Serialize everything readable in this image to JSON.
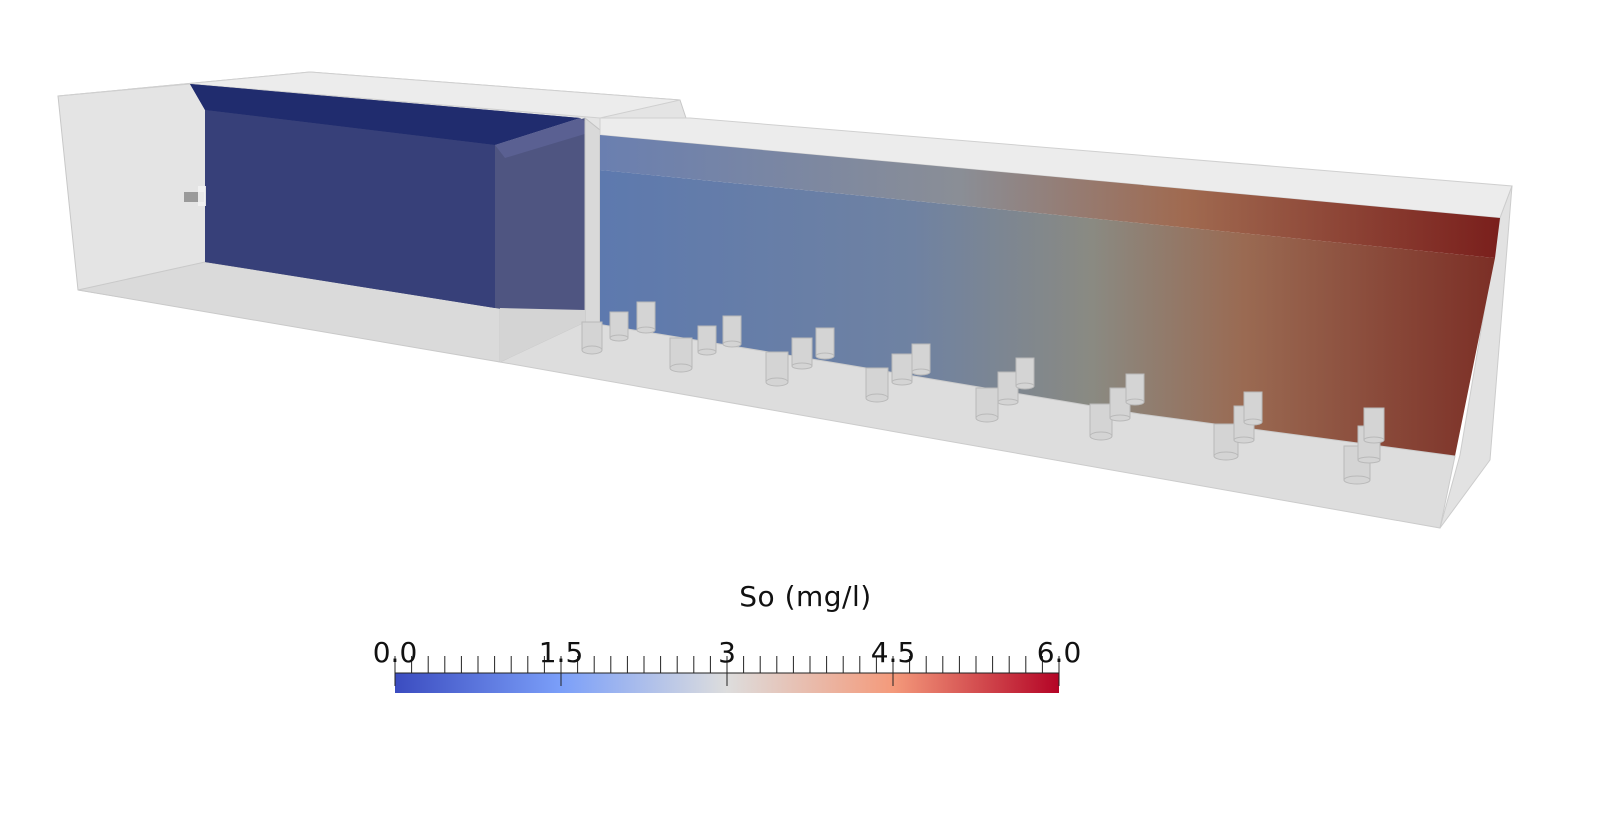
{
  "colorbar": {
    "title": "So (mg/l)",
    "min": 0.0,
    "max": 6.0,
    "labels": [
      {
        "text": "0.0",
        "value": 0.0
      },
      {
        "text": "1.5",
        "value": 1.5
      },
      {
        "text": "3",
        "value": 3.0
      },
      {
        "text": "4.5",
        "value": 4.5
      },
      {
        "text": "6.0",
        "value": 6.0
      }
    ],
    "colormap": [
      "#3b4cc0",
      "#7b9ff9",
      "#dddddd",
      "#f49a7b",
      "#b40426"
    ]
  },
  "colors": {
    "tank_shell": "#d6d6d6",
    "tank_edge": "#bdbdbd",
    "low_field": "#2a3a85",
    "high_field": "#7a2a24"
  }
}
